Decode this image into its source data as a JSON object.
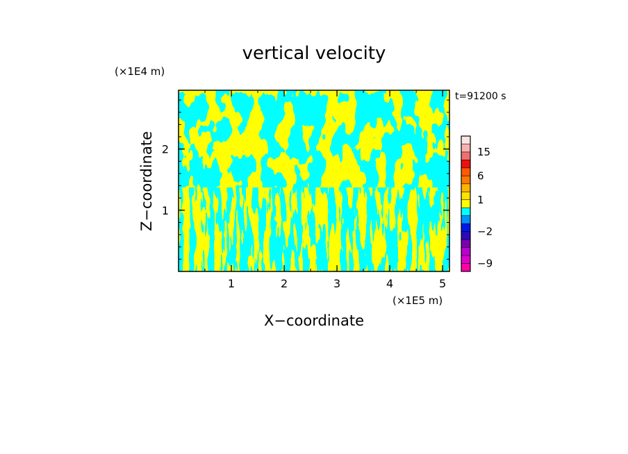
{
  "chart_data": {
    "type": "heatmap",
    "title": "vertical velocity",
    "xlabel": "X−coordinate",
    "ylabel": "Z−coordinate",
    "x_unit_label": "(×1E5 m)",
    "y_unit_label": "(×1E4 m)",
    "time_label": "t=91200 s",
    "xlim": [
      0,
      5.13
    ],
    "ylim": [
      0,
      2.96
    ],
    "x_ticks": [
      {
        "value": 1,
        "label": "1"
      },
      {
        "value": 2,
        "label": "2"
      },
      {
        "value": 3,
        "label": "3"
      },
      {
        "value": 4,
        "label": "4"
      },
      {
        "value": 5,
        "label": "5"
      }
    ],
    "x_minor_step": 0.5,
    "y_ticks": [
      {
        "value": 1,
        "label": "1"
      },
      {
        "value": 2,
        "label": "2"
      }
    ],
    "y_minor_step": 0.2,
    "field_colors": {
      "negative": "#00ffff",
      "positive": "#ffff00"
    },
    "colorbar": {
      "levels": [
        {
          "value": -12,
          "color": "#ff00a8"
        },
        {
          "value": -9,
          "color": "#dd00cc"
        },
        {
          "value": -6,
          "color": "#b800d0"
        },
        {
          "value": -4,
          "color": "#7a00b0"
        },
        {
          "value": -3,
          "color": "#2a0ab8"
        },
        {
          "value": -2,
          "color": "#0018e8"
        },
        {
          "value": -1,
          "color": "#0090ff"
        },
        {
          "value": 0,
          "color": "#00ffff"
        },
        {
          "value": 0.5,
          "color": "#ffff00"
        },
        {
          "value": 1,
          "color": "#ffe000"
        },
        {
          "value": 2,
          "color": "#ffb400"
        },
        {
          "value": 4,
          "color": "#ff7800"
        },
        {
          "value": 6,
          "color": "#ff5a00"
        },
        {
          "value": 9,
          "color": "#ee1010"
        },
        {
          "value": 12,
          "color": "#f07070"
        },
        {
          "value": 15,
          "color": "#f8b2b2"
        },
        {
          "value": 20,
          "color": "#fde4e4"
        }
      ],
      "tick_labels": [
        "15",
        "6",
        "1",
        "−2",
        "−9"
      ]
    }
  }
}
